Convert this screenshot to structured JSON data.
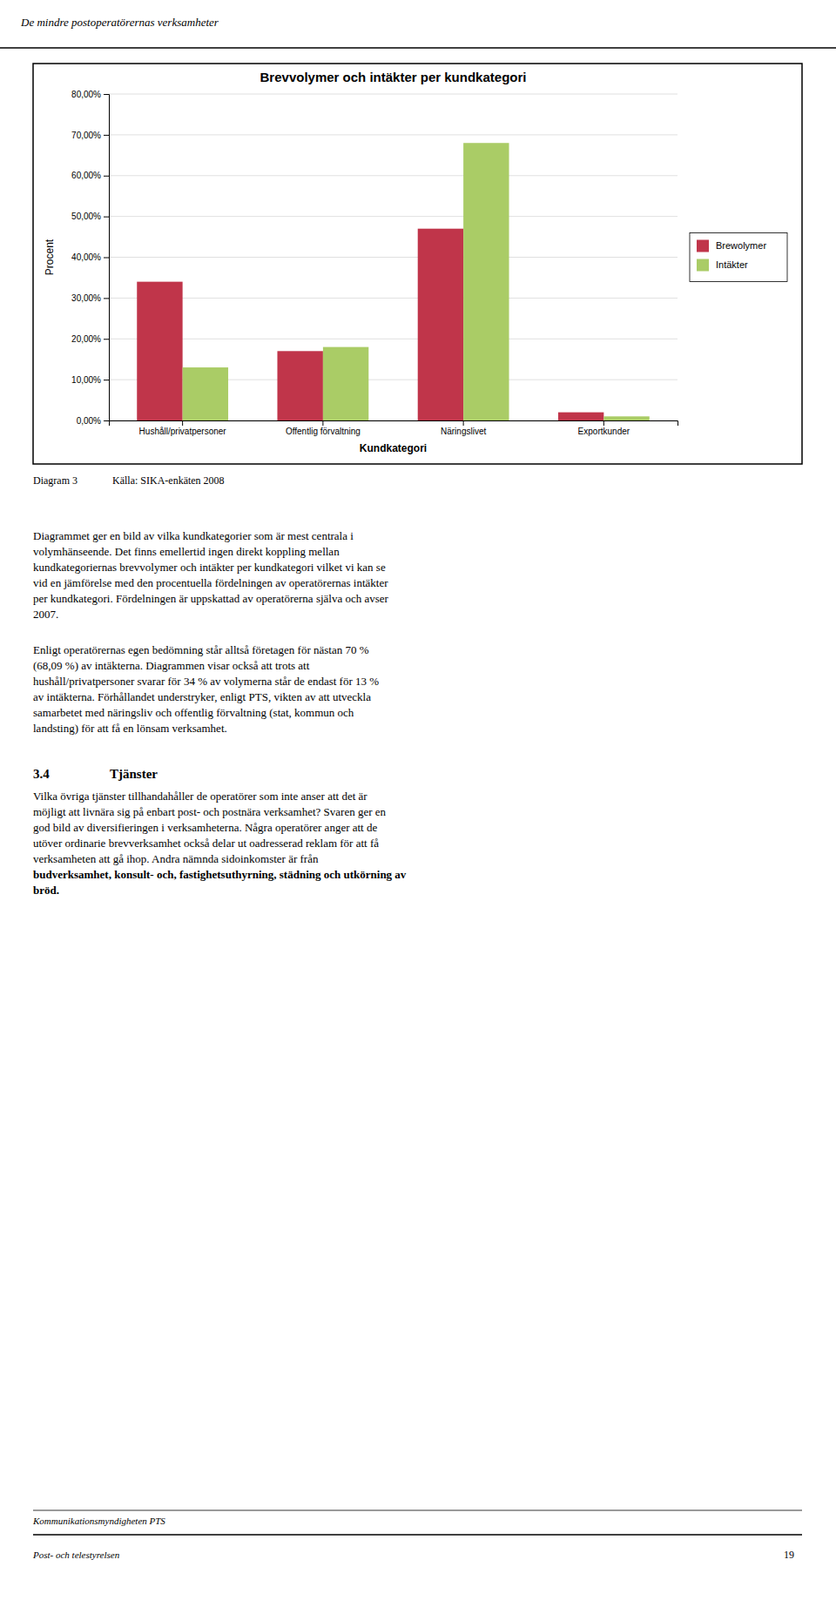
{
  "chart_data": {
    "type": "bar",
    "title": "Brevvolymer och intäkter per kundkategori",
    "xlabel": "Kundkategori",
    "ylabel": "Procent",
    "categories": [
      "Hushåll/privatpersoner",
      "Offentlig förvaltning",
      "Näringslivet",
      "Exportkunder"
    ],
    "series": [
      {
        "name": "Brewolymer",
        "color": "#C0354A",
        "values": [
          0.34,
          0.17,
          0.47,
          0.02
        ]
      },
      {
        "name": "Intäkter",
        "color": "#AACC66",
        "values": [
          0.13,
          0.18,
          0.68,
          0.01
        ]
      }
    ],
    "ylim": [
      0.0,
      0.8
    ],
    "yticks": [
      {
        "value": 0.0,
        "label": "0,00%"
      },
      {
        "value": 0.1,
        "label": "10,00%"
      },
      {
        "value": 0.2,
        "label": "20,00%"
      },
      {
        "value": 0.3,
        "label": "30,00%"
      },
      {
        "value": 0.4,
        "label": "40,00%"
      },
      {
        "value": 0.5,
        "label": "50,00%"
      },
      {
        "value": 0.6,
        "label": "60,00%"
      },
      {
        "value": 0.7,
        "label": "70,00%"
      },
      {
        "value": 0.8,
        "label": "80,00%"
      }
    ],
    "grid": true,
    "legend": "right"
  },
  "page": {
    "header": "De mindre postoperatörernas verksamheter",
    "diagram_label": "Diagram 3",
    "diagram_source": "Källa: SIKA-enkäten 2008",
    "body": [
      {
        "lines": [
          "Diagrammet ger en bild av vilka kundkategorier som är mest centrala i",
          "volymhänseende. Det finns emellertid ingen direkt koppling mellan",
          "kundkategoriernas brevvolymer och intäkter per kundkategori vilket vi kan se",
          "vid en jämförelse med den procentuella fördelningen av operatörernas intäkter",
          "per kundkategori. Fördelningen är uppskattad av operatörerna själva och avser",
          "2007."
        ]
      },
      {
        "lines": [
          "Enligt operatörernas egen bedömning står alltså företagen för nästan 70 %",
          "(68,09  %) av intäkterna. Diagrammen visar också att trots att",
          "hushåll/privatpersoner svarar för 34 % av volymerna står de endast för 13 %",
          "av intäkterna. Förhållandet understryker, enligt PTS, vikten av att utveckla",
          "samarbetet med näringsliv och offentlig förvaltning (stat, kommun och",
          "landsting) för att få en lönsam verksamhet."
        ]
      },
      {
        "number": "3.4",
        "heading": "Tjänster"
      },
      {
        "lines": [
          "Vilka övriga tjänster tillhandahåller de operatörer som inte anser att det är",
          "möjligt att livnära sig på enbart post- och postnära verksamhet? Svaren ger en",
          "god bild av diversifieringen i verksamheterna. Några operatörer anger att de",
          "utöver ordinarie brevverksamhet också delar ut oadresserad reklam för att få",
          "verksamheten att gå ihop. Andra nämnda sidoinkomster är från"
        ],
        "bold_lines": [
          "budverksamhet, konsult- och, fastighetsuthyrning, städning och utkörning av",
          "bröd."
        ]
      }
    ],
    "footer_left": "Kommunikationsmyndigheten PTS",
    "footer_right": "Post- och telestyrelsen",
    "footer_page": "19"
  }
}
